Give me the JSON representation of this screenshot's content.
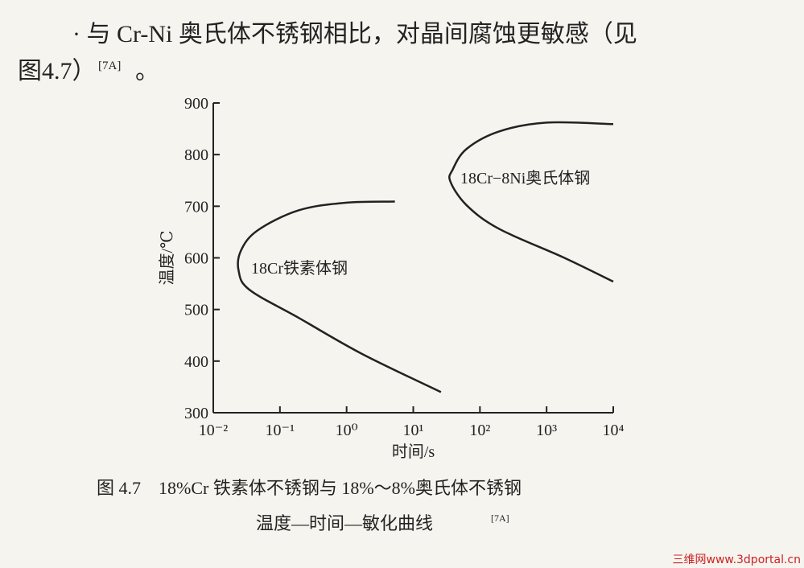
{
  "paragraph": {
    "lines": [
      "· 与 Cr-Ni 奥氏体不锈钢相比，对晶间腐蚀更敏感（见",
      "图4.7）"
    ],
    "ref": "[7A]",
    "end": "。"
  },
  "chart_data": {
    "type": "line",
    "x_label": "时间/s",
    "y_label": "温度/℃",
    "log_x": true,
    "color": "#222222",
    "xlim": [
      0.01,
      10000
    ],
    "xticks": [
      {
        "value": 0.01,
        "label": "10⁻²"
      },
      {
        "value": 0.1,
        "label": "10⁻¹"
      },
      {
        "value": 1,
        "label": "10⁰"
      },
      {
        "value": 10,
        "label": "10¹"
      },
      {
        "value": 100,
        "label": "10²"
      },
      {
        "value": 1000,
        "label": "10³"
      },
      {
        "value": 10000,
        "label": "10⁴"
      }
    ],
    "ylim": [
      300,
      900
    ],
    "yticks": [
      300,
      400,
      500,
      600,
      700,
      800,
      900
    ],
    "series": [
      {
        "name": "18Cr铁素体钢",
        "x": [
          26,
          1.7,
          0.19,
          0.035,
          0.024,
          0.026,
          0.046,
          0.19,
          1.0,
          5.3
        ],
        "values": [
          340,
          414,
          484,
          538,
          575,
          614,
          653,
          692,
          707,
          709
        ]
      },
      {
        "name": "18Cr−8Ni奥氏体钢",
        "x": [
          10000,
          1780,
          195,
          63,
          36,
          39,
          63,
          195,
          1000,
          10000
        ],
        "values": [
          554,
          601,
          656,
          702,
          748,
          771,
          811,
          845,
          862,
          859
        ]
      }
    ]
  },
  "caption": {
    "line1": "图 4.7　18%Cr 铁素体不锈钢与 18%～8%奥氏体不锈钢",
    "line2": "温度—时间—敏化曲线",
    "ref": "[7A]"
  },
  "watermark": "三维网www.3dportal.cn"
}
